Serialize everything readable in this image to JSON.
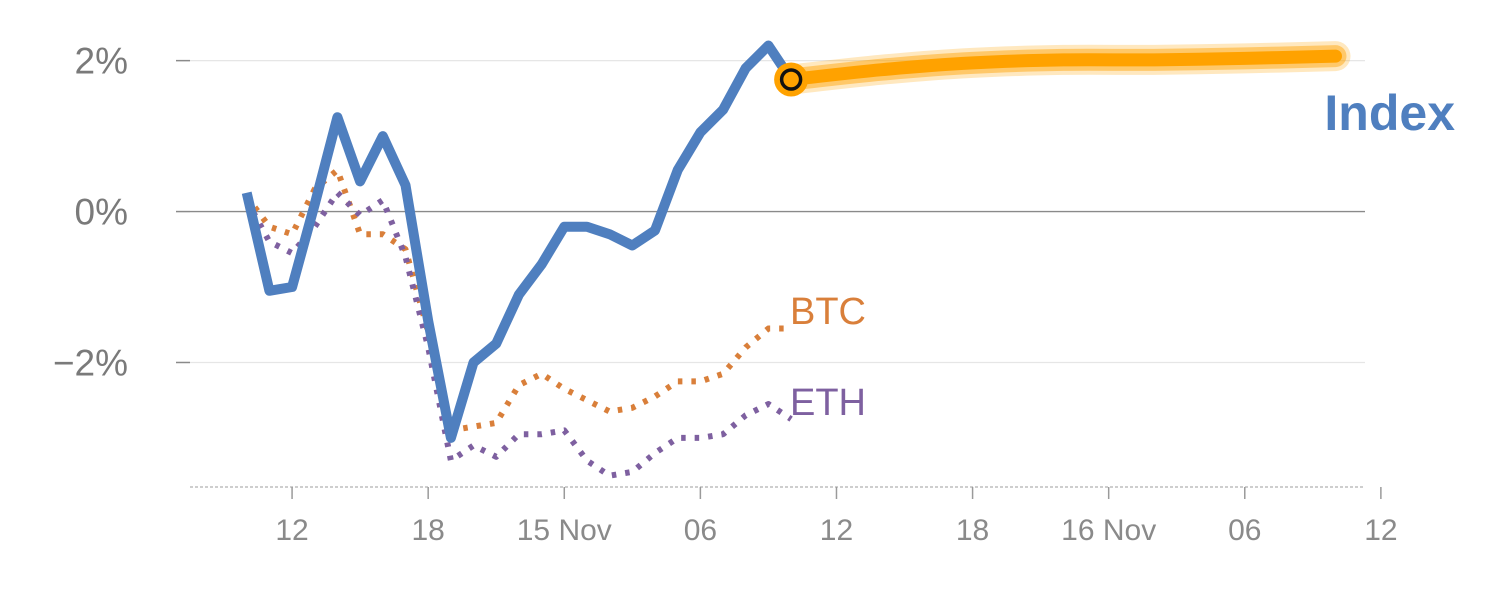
{
  "chart_data": {
    "type": "line",
    "x_unit": "hours",
    "ylim": [
      -3.65,
      2.3
    ],
    "xlim": [
      7.5,
      59.3
    ],
    "y_ticks": [
      {
        "value": 2,
        "label": "2%"
      },
      {
        "value": 0,
        "label": "0%"
      },
      {
        "value": -2,
        "label": "−2%"
      }
    ],
    "x_ticks": [
      {
        "value": 12,
        "label": "12"
      },
      {
        "value": 18,
        "label": "18"
      },
      {
        "value": 24,
        "label": "15 Nov"
      },
      {
        "value": 30,
        "label": "06"
      },
      {
        "value": 36,
        "label": "12"
      },
      {
        "value": 42,
        "label": "18"
      },
      {
        "value": 48,
        "label": "16 Nov"
      },
      {
        "value": 54,
        "label": "06"
      },
      {
        "value": 60,
        "label": "12"
      }
    ],
    "series": [
      {
        "name": "Index",
        "color": "#4f7fbf",
        "style": "solid",
        "x": [
          10,
          11,
          12,
          13,
          14,
          15,
          16,
          17,
          18,
          19,
          20,
          21,
          22,
          23,
          24,
          25,
          26,
          27,
          28,
          29,
          30,
          31,
          32,
          33,
          34
        ],
        "y": [
          0.25,
          -1.05,
          -1.0,
          0.1,
          1.25,
          0.4,
          1.0,
          0.35,
          -1.45,
          -3.0,
          -2.0,
          -1.75,
          -1.1,
          -0.7,
          -0.2,
          -0.2,
          -0.3,
          -0.45,
          -0.25,
          0.55,
          1.05,
          1.35,
          1.9,
          2.2,
          1.75
        ]
      },
      {
        "name": "Index forecast",
        "color": "#ffa200",
        "style": "band",
        "x": [
          34,
          38,
          42,
          46,
          50,
          54,
          58
        ],
        "y": [
          1.75,
          1.88,
          1.97,
          2.01,
          2.01,
          2.03,
          2.06
        ]
      },
      {
        "name": "BTC",
        "color": "#d97f3a",
        "style": "dotted",
        "x": [
          10,
          11,
          12,
          13,
          14,
          15,
          16,
          17,
          18,
          19,
          20,
          21,
          22,
          23,
          24,
          25,
          26,
          27,
          28,
          29,
          30,
          31,
          32,
          33,
          34
        ],
        "y": [
          0.2,
          -0.2,
          -0.3,
          0.3,
          0.55,
          -0.3,
          -0.3,
          -0.5,
          -1.6,
          -2.9,
          -2.85,
          -2.8,
          -2.3,
          -2.15,
          -2.35,
          -2.5,
          -2.65,
          -2.6,
          -2.45,
          -2.25,
          -2.25,
          -2.15,
          -1.8,
          -1.55,
          -1.55
        ]
      },
      {
        "name": "ETH",
        "color": "#7e60a0",
        "style": "dotted",
        "x": [
          10,
          11,
          12,
          13,
          14,
          15,
          16,
          17,
          18,
          19,
          20,
          21,
          22,
          23,
          24,
          25,
          26,
          27,
          28,
          29,
          30,
          31,
          32,
          33,
          34
        ],
        "y": [
          0.15,
          -0.4,
          -0.55,
          -0.2,
          0.25,
          -0.05,
          0.15,
          -0.6,
          -1.8,
          -3.3,
          -3.1,
          -3.25,
          -2.95,
          -2.95,
          -2.9,
          -3.3,
          -3.5,
          -3.45,
          -3.2,
          -3.0,
          -3.0,
          -2.95,
          -2.7,
          -2.55,
          -2.75
        ]
      }
    ],
    "forecast_marker": {
      "x": 34,
      "y": 1.75,
      "color": "#ffa200"
    },
    "labels": {
      "index": "Index",
      "btc": "BTC",
      "eth": "ETH"
    },
    "colors": {
      "index": "#4f7fbf",
      "forecast": "#ffa200",
      "btc": "#d97f3a",
      "eth": "#7e60a0",
      "axis": "#bdbdbd",
      "zero_line": "#8a8a8a",
      "grid": "#e6e6e6"
    }
  }
}
